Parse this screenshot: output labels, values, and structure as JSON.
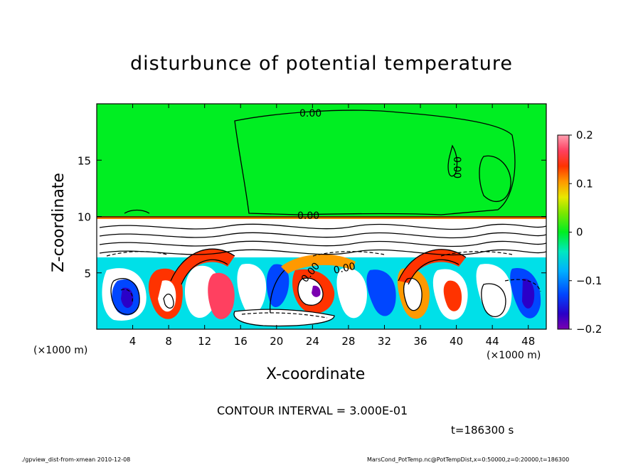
{
  "chart_data": {
    "type": "heatmap",
    "title": "disturbunce of potential temperature",
    "xlabel": "X-coordinate",
    "ylabel": "Z-coordinate",
    "x_unit": "(×1000 m)",
    "xlim": [
      0,
      50
    ],
    "ylim": [
      0,
      20
    ],
    "x_ticks": [
      4,
      8,
      12,
      16,
      20,
      24,
      28,
      32,
      36,
      40,
      44,
      48
    ],
    "y_ticks": [
      5,
      10,
      15
    ],
    "colorbar": {
      "range": [
        -0.2,
        0.2
      ],
      "ticks": [
        "0.2",
        "0.1",
        "0",
        "−0.1",
        "−0.2"
      ]
    },
    "contour_labels": [
      "0.00",
      "0.00",
      "0.00",
      "0.00",
      "0.00"
    ],
    "contour_interval": "CONTOUR INTERVAL = 3.000E-01",
    "time": "t=186300 s"
  },
  "footer": {
    "left": "./gpview_dist-from-xmean  2010-12-08",
    "right": "MarsCond_PotTemp.nc@PotTempDist,x=0:50000,z=0:20000,t=186300"
  }
}
